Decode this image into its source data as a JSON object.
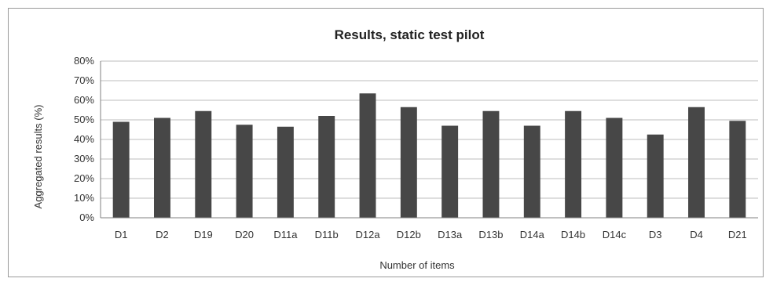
{
  "chart_data": {
    "type": "bar",
    "title": "Results, static test pilot",
    "xlabel": "Number of items",
    "ylabel": "Aggregated results (%)",
    "categories": [
      "D1",
      "D2",
      "D19",
      "D20",
      "D11a",
      "D11b",
      "D12a",
      "D12b",
      "D13a",
      "D13b",
      "D14a",
      "D14b",
      "D14c",
      "D3",
      "D4",
      "D21"
    ],
    "values": [
      0.49,
      0.51,
      0.545,
      0.475,
      0.465,
      0.52,
      0.635,
      0.565,
      0.47,
      0.545,
      0.47,
      0.545,
      0.51,
      0.425,
      0.565,
      0.495
    ],
    "ylim": [
      0,
      0.8
    ],
    "yticks": [
      "0%",
      "10%",
      "20%",
      "30%",
      "40%",
      "50%",
      "60%",
      "70%",
      "80%"
    ],
    "grid": true,
    "legend": "none",
    "bar_color": "#474747"
  }
}
